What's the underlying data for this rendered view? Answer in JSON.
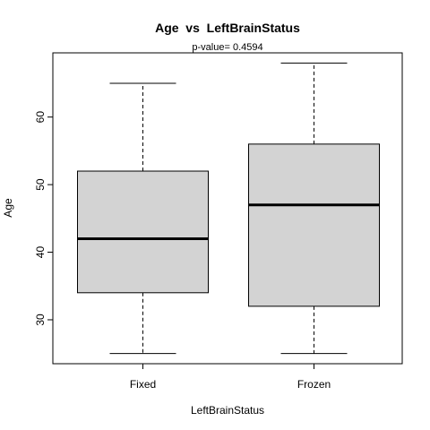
{
  "chart_data": {
    "type": "boxplot",
    "title": "Age  vs  LeftBrainStatus",
    "subtitle": "p-value= 0.4594",
    "xlabel": "LeftBrainStatus",
    "ylabel": "Age",
    "ylim": [
      23.5,
      69.5
    ],
    "yticks": [
      30,
      40,
      50,
      60
    ],
    "categories": [
      "Fixed",
      "Frozen"
    ],
    "boxes": [
      {
        "category": "Fixed",
        "min": 25,
        "q1": 34,
        "median": 42,
        "q3": 52,
        "max": 65
      },
      {
        "category": "Frozen",
        "min": 25,
        "q1": 32,
        "median": 47,
        "q3": 56,
        "max": 68
      }
    ],
    "colors": {
      "box_fill": "#d3d3d3",
      "stroke": "#000000"
    },
    "grid": false
  }
}
